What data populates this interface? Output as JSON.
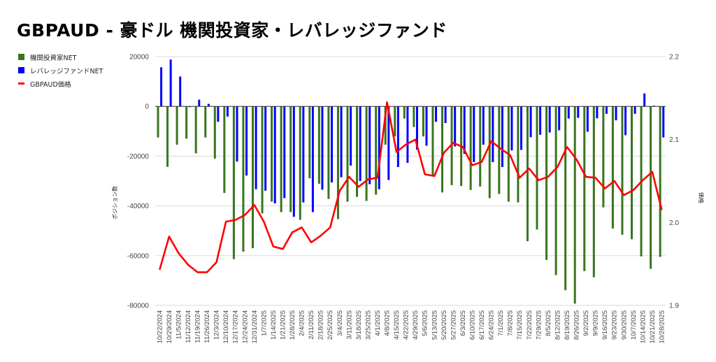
{
  "title": "GBPAUD - 豪ドル 機関投資家・レバレッジファンド",
  "chart_data": {
    "type": "bar+line",
    "title": "GBPAUD - 豪ドル 機関投資家・レバレッジファンド",
    "xlabel": "",
    "ylabel": "ポジション数",
    "y2label": "価格",
    "ylim": [
      -80000,
      20000
    ],
    "y2lim": [
      1.9,
      2.2
    ],
    "yticks": [
      "20000",
      "0",
      "-20000",
      "-40000",
      "-60000",
      "-80000"
    ],
    "ytick_values": [
      20000,
      0,
      -20000,
      -40000,
      -60000,
      -80000
    ],
    "y2ticks": [
      "2.2",
      "2.1",
      "2.0",
      "1.9"
    ],
    "y2tick_values": [
      2.2,
      2.1,
      2.0,
      1.9
    ],
    "grid": true,
    "legend_position": "left",
    "categories": [
      "10/22/2024",
      "10/29/2024",
      "11/5/2024",
      "11/12/2024",
      "11/19/2024",
      "11/26/2024",
      "12/3/2024",
      "12/10/2024",
      "12/17/2024",
      "12/24/2024",
      "12/31/2024",
      "1/7/2025",
      "1/14/2025",
      "1/21/2025",
      "1/28/2025",
      "2/4/2025",
      "2/11/2025",
      "2/18/2025",
      "2/25/2025",
      "3/4/2025",
      "3/11/2025",
      "3/18/2025",
      "3/25/2025",
      "4/1/2025",
      "4/8/2025",
      "4/15/2025",
      "4/22/2025",
      "4/29/2025",
      "5/6/2025",
      "5/13/2025",
      "5/20/2025",
      "5/27/2025",
      "6/3/2025",
      "6/10/2025",
      "6/17/2025",
      "6/24/2025",
      "7/1/2025",
      "7/8/2025",
      "7/15/2025",
      "7/22/2025",
      "7/29/2025",
      "8/5/2025",
      "8/12/2025",
      "8/19/2025",
      "8/26/2025",
      "9/2/2025",
      "9/9/2025",
      "9/16/2025",
      "9/23/2025",
      "9/30/2025",
      "10/7/2025",
      "10/14/2025",
      "10/21/2025",
      "10/28/2025"
    ],
    "series": [
      {
        "name": "機関投資家NET",
        "type": "bar",
        "axis": "left",
        "color": "#38761d",
        "values": [
          -12500,
          -24300,
          -15400,
          -13000,
          -18900,
          -12500,
          -21000,
          -34800,
          -61400,
          -58400,
          -57000,
          -43000,
          -38300,
          -42500,
          -42500,
          -45600,
          -28900,
          -31100,
          -37200,
          -45300,
          -38300,
          -36400,
          -38000,
          -35500,
          -15400,
          -12100,
          -4900,
          -8300,
          -12100,
          -28000,
          -34600,
          -31700,
          -32000,
          -33600,
          -32200,
          -36900,
          -35200,
          -38300,
          -38600,
          -54200,
          -49500,
          -61700,
          -67800,
          -73900,
          -79300,
          -66200,
          -68700,
          -40600,
          -49100,
          -51600,
          -53400,
          -60300,
          -65300,
          -60500
        ]
      },
      {
        "name": "レバレッジファンドNET",
        "type": "bar",
        "axis": "left",
        "color": "#0000ff",
        "values": [
          15700,
          18800,
          12000,
          -300,
          2700,
          1000,
          -6200,
          -4100,
          -22200,
          -27800,
          -33300,
          -33900,
          -39000,
          -36900,
          -44400,
          -38600,
          -42500,
          -33500,
          -30600,
          -28500,
          -23800,
          -30000,
          -31300,
          -33300,
          -29600,
          -24400,
          -22700,
          -17400,
          -15800,
          -6200,
          -6700,
          -16100,
          -19100,
          -22400,
          -15400,
          -22400,
          -24400,
          -17700,
          -17500,
          -12400,
          -11400,
          -10500,
          -9600,
          -4900,
          -4600,
          -10200,
          -4800,
          -3000,
          -5600,
          -11600,
          -3000,
          5200,
          300,
          -12500
        ]
      },
      {
        "name": "GBPAUD価格",
        "type": "line",
        "axis": "right",
        "color": "#ff0000",
        "values": [
          1.943,
          1.983,
          1.963,
          1.949,
          1.94,
          1.94,
          1.952,
          2.001,
          2.003,
          2.009,
          2.021,
          2.001,
          1.971,
          1.968,
          1.988,
          1.994,
          1.976,
          1.984,
          1.994,
          2.038,
          2.055,
          2.043,
          2.052,
          2.054,
          2.145,
          2.085,
          2.094,
          2.1,
          2.058,
          2.056,
          2.084,
          2.096,
          2.091,
          2.069,
          2.073,
          2.098,
          2.089,
          2.081,
          2.054,
          2.065,
          2.051,
          2.055,
          2.067,
          2.091,
          2.076,
          2.055,
          2.054,
          2.041,
          2.05,
          2.033,
          2.039,
          2.051,
          2.061,
          2.015
        ]
      }
    ]
  }
}
